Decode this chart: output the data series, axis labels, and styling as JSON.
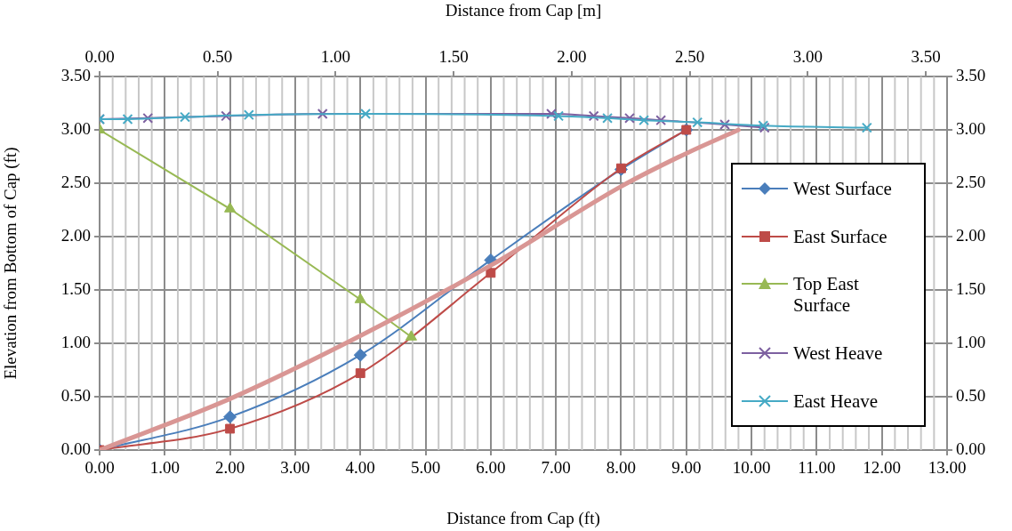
{
  "chart_data": {
    "type": "line",
    "xlabel": "Distance from Cap (ft)",
    "x2label": "Distance from Cap [m]",
    "ylabel": "Elevation from Bottom of Cap (ft)",
    "xlim": [
      0,
      13
    ],
    "xticks": [
      {
        "value": 0,
        "label": "0.00"
      },
      {
        "value": 1,
        "label": "1.00"
      },
      {
        "value": 2,
        "label": "2.00"
      },
      {
        "value": 3,
        "label": "3.00"
      },
      {
        "value": 4,
        "label": "4.00"
      },
      {
        "value": 5,
        "label": "5.00"
      },
      {
        "value": 6,
        "label": "6.00"
      },
      {
        "value": 7,
        "label": "7.00"
      },
      {
        "value": 8,
        "label": "8.00"
      },
      {
        "value": 9,
        "label": "9.00"
      },
      {
        "value": 10,
        "label": "10.00"
      },
      {
        "value": 11,
        "label": "11.00"
      },
      {
        "value": 12,
        "label": "12.00"
      },
      {
        "value": 13,
        "label": "13.00"
      }
    ],
    "x2lim": [
      0,
      3.59
    ],
    "x2ticks": [
      {
        "value": 0,
        "label": "0.00"
      },
      {
        "value": 0.5,
        "label": "0.50"
      },
      {
        "value": 1,
        "label": "1.00"
      },
      {
        "value": 1.5,
        "label": "1.50"
      },
      {
        "value": 2,
        "label": "2.00"
      },
      {
        "value": 2.5,
        "label": "2.50"
      },
      {
        "value": 3,
        "label": "3.00"
      },
      {
        "value": 3.5,
        "label": "3.50"
      }
    ],
    "ylim": [
      0,
      3.5
    ],
    "yticks": [
      {
        "value": 0,
        "label": "0.00"
      },
      {
        "value": 0.5,
        "label": "0.50"
      },
      {
        "value": 1,
        "label": "1.00"
      },
      {
        "value": 1.5,
        "label": "1.50"
      },
      {
        "value": 2,
        "label": "2.00"
      },
      {
        "value": 2.5,
        "label": "2.50"
      },
      {
        "value": 3,
        "label": "3.00"
      },
      {
        "value": 3.5,
        "label": "3.50"
      }
    ],
    "y2lim": [
      0,
      3.5
    ],
    "y2ticks": [
      {
        "value": 0,
        "label": "0.00"
      },
      {
        "value": 0.5,
        "label": "0.50"
      },
      {
        "value": 1,
        "label": "1.00"
      },
      {
        "value": 1.5,
        "label": "1.50"
      },
      {
        "value": 2,
        "label": "2.00"
      },
      {
        "value": 2.5,
        "label": "2.50"
      },
      {
        "value": 3,
        "label": "3.00"
      },
      {
        "value": 3.5,
        "label": "3.50"
      }
    ],
    "grid": true,
    "legend": "right",
    "series": [
      {
        "name": "West Surface",
        "color": "#4a7ebb",
        "marker": "diamond",
        "x": [
          0,
          2,
          4,
          6,
          8,
          9
        ],
        "values": [
          0,
          0.31,
          0.89,
          1.78,
          2.63,
          3.0
        ]
      },
      {
        "name": "East Surface",
        "color": "#be4b48",
        "marker": "square",
        "x": [
          0,
          2,
          4,
          6,
          8,
          9
        ],
        "values": [
          0,
          0.2,
          0.72,
          1.66,
          2.64,
          3.0
        ]
      },
      {
        "name": "Top East Surface",
        "color": "#98b954",
        "marker": "triangle",
        "x": [
          0,
          2,
          4,
          4.78
        ],
        "values": [
          3.0,
          2.26,
          1.41,
          1.06
        ]
      },
      {
        "name": "West Heave",
        "color": "#7d60a0",
        "marker": "cross",
        "x": [
          0,
          0.74,
          1.94,
          3.42,
          6.93,
          7.58,
          8.13,
          8.61,
          9.59,
          10.2
        ],
        "values": [
          3.1,
          3.11,
          3.13,
          3.15,
          3.15,
          3.13,
          3.11,
          3.09,
          3.05,
          3.02
        ]
      },
      {
        "name": "East Heave",
        "color": "#46aac5",
        "marker": "cross",
        "x": [
          0,
          0.43,
          1.31,
          2.29,
          4.08,
          7.04,
          7.79,
          8.35,
          9.17,
          10.18,
          11.77
        ],
        "values": [
          3.1,
          3.1,
          3.12,
          3.14,
          3.15,
          3.13,
          3.11,
          3.09,
          3.07,
          3.04,
          3.02
        ]
      },
      {
        "color": "#d99694",
        "marker": "none",
        "x": [
          0,
          2,
          4,
          6,
          8,
          9,
          9.8
        ],
        "values": [
          0,
          0.48,
          1.07,
          1.73,
          2.47,
          2.78,
          3.0
        ]
      }
    ]
  }
}
